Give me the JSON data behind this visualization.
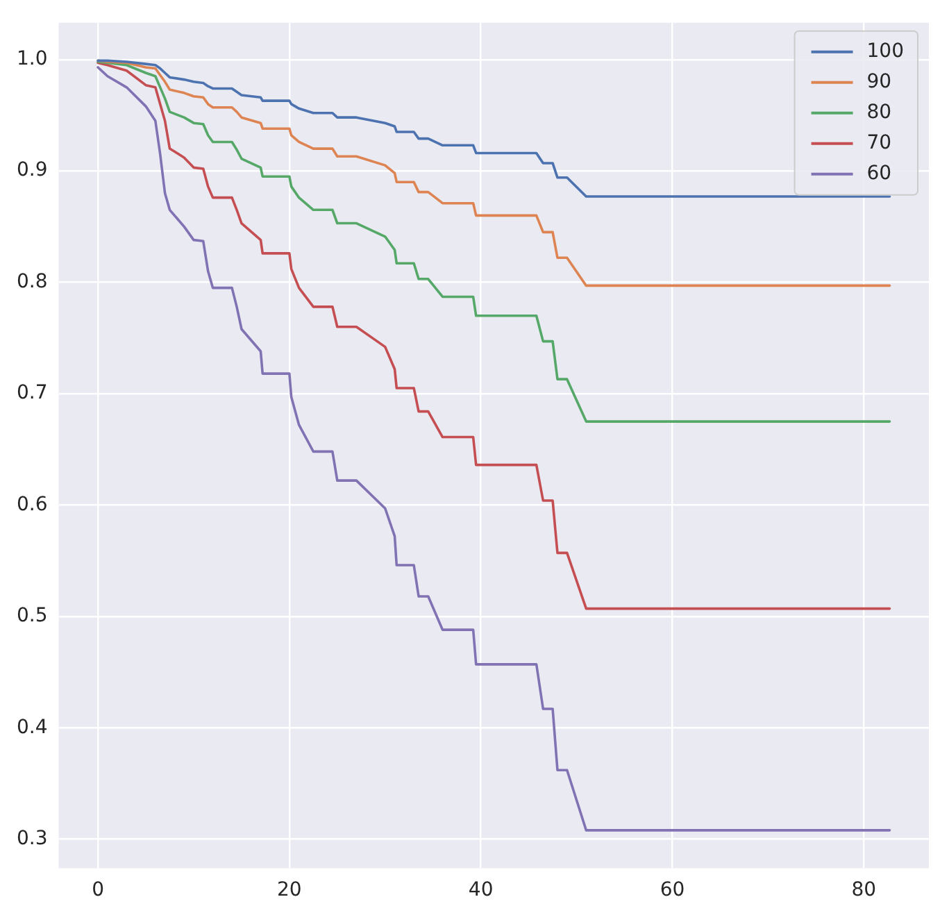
{
  "chart_data": {
    "type": "line",
    "x": [
      0,
      1,
      3,
      5,
      6,
      6.5,
      7,
      7.5,
      9,
      10,
      11,
      11.5,
      12,
      14,
      14.5,
      15,
      17,
      17.2,
      20,
      20.2,
      21,
      22.5,
      24.5,
      25,
      27,
      30,
      31,
      31.2,
      33,
      33.5,
      34.5,
      36,
      39.2,
      39.5,
      45.8,
      46.5,
      47.5,
      48,
      49,
      51,
      82.7
    ],
    "series": [
      {
        "name": "100",
        "color": "#4c72b0",
        "values": [
          0.999,
          0.999,
          0.998,
          0.996,
          0.995,
          0.992,
          0.988,
          0.984,
          0.982,
          0.98,
          0.979,
          0.976,
          0.974,
          0.974,
          0.971,
          0.968,
          0.966,
          0.963,
          0.963,
          0.96,
          0.956,
          0.952,
          0.952,
          0.948,
          0.948,
          0.943,
          0.94,
          0.935,
          0.935,
          0.929,
          0.929,
          0.923,
          0.923,
          0.916,
          0.916,
          0.907,
          0.907,
          0.894,
          0.894,
          0.877,
          0.877
        ]
      },
      {
        "name": "90",
        "color": "#dd8452",
        "values": [
          0.999,
          0.998,
          0.997,
          0.993,
          0.992,
          0.986,
          0.98,
          0.973,
          0.97,
          0.967,
          0.966,
          0.96,
          0.957,
          0.957,
          0.953,
          0.948,
          0.943,
          0.938,
          0.938,
          0.932,
          0.926,
          0.92,
          0.92,
          0.913,
          0.913,
          0.905,
          0.898,
          0.89,
          0.89,
          0.881,
          0.881,
          0.871,
          0.871,
          0.86,
          0.86,
          0.845,
          0.845,
          0.822,
          0.822,
          0.797,
          0.797
        ]
      },
      {
        "name": "80",
        "color": "#55a868",
        "values": [
          0.998,
          0.997,
          0.995,
          0.988,
          0.985,
          0.975,
          0.965,
          0.953,
          0.948,
          0.943,
          0.942,
          0.932,
          0.926,
          0.926,
          0.919,
          0.911,
          0.903,
          0.895,
          0.895,
          0.886,
          0.876,
          0.865,
          0.865,
          0.853,
          0.853,
          0.841,
          0.829,
          0.817,
          0.817,
          0.803,
          0.803,
          0.787,
          0.787,
          0.77,
          0.77,
          0.747,
          0.747,
          0.713,
          0.713,
          0.675,
          0.675
        ]
      },
      {
        "name": "70",
        "color": "#c44e52",
        "values": [
          0.997,
          0.995,
          0.99,
          0.977,
          0.975,
          0.96,
          0.945,
          0.92,
          0.912,
          0.903,
          0.902,
          0.886,
          0.876,
          0.876,
          0.865,
          0.853,
          0.838,
          0.826,
          0.826,
          0.812,
          0.795,
          0.778,
          0.778,
          0.76,
          0.76,
          0.742,
          0.722,
          0.705,
          0.705,
          0.684,
          0.684,
          0.661,
          0.661,
          0.636,
          0.636,
          0.604,
          0.604,
          0.557,
          0.557,
          0.507,
          0.507
        ]
      },
      {
        "name": "60",
        "color": "#8172b3",
        "values": [
          0.993,
          0.985,
          0.975,
          0.958,
          0.945,
          0.915,
          0.88,
          0.865,
          0.85,
          0.838,
          0.837,
          0.81,
          0.795,
          0.795,
          0.778,
          0.758,
          0.738,
          0.718,
          0.718,
          0.697,
          0.672,
          0.648,
          0.648,
          0.622,
          0.622,
          0.597,
          0.572,
          0.546,
          0.546,
          0.518,
          0.518,
          0.488,
          0.488,
          0.457,
          0.457,
          0.417,
          0.417,
          0.362,
          0.362,
          0.308,
          0.308
        ]
      }
    ],
    "xlim": [
      -4.1,
      86.8
    ],
    "xticks": [
      0,
      20,
      40,
      60,
      80
    ],
    "ylim": [
      0.274,
      1.033
    ],
    "yticks": [
      0.3,
      0.4,
      0.5,
      0.6,
      0.7,
      0.8,
      0.9,
      {
        "value": 1,
        "label": "1.0"
      }
    ],
    "grid": true,
    "legend": "top right",
    "marker": "none",
    "line_style": "solid"
  }
}
